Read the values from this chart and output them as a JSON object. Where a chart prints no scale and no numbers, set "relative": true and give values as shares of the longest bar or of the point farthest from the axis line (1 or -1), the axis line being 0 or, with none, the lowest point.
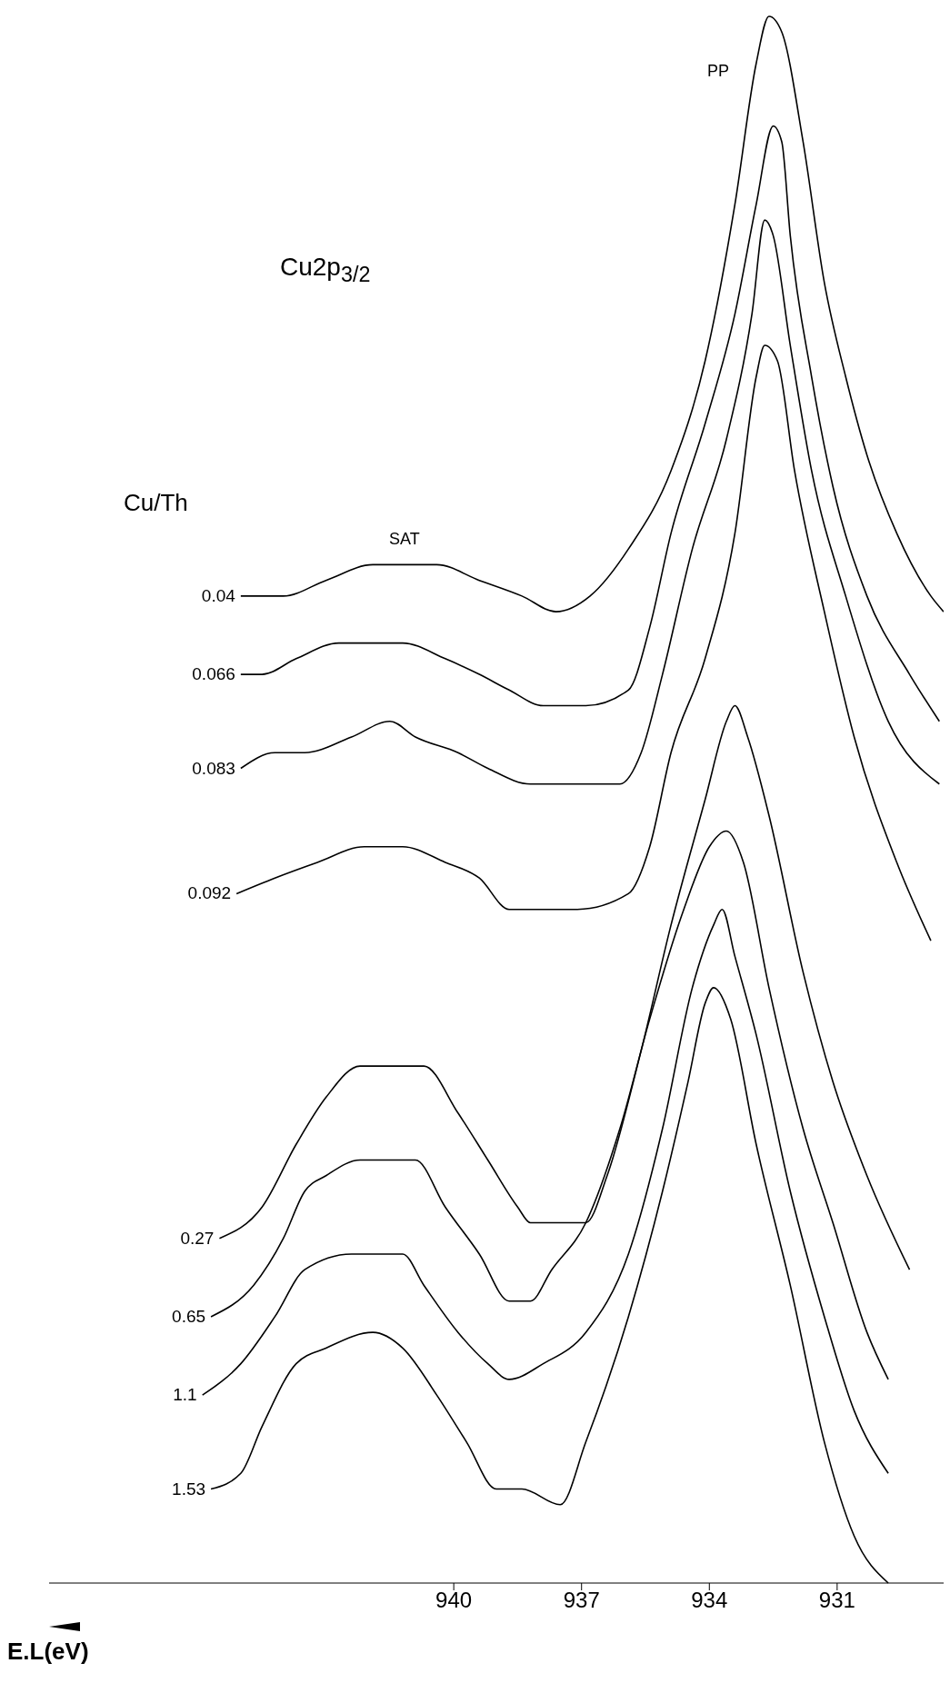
{
  "chart_data": {
    "type": "line",
    "title": "Cu2p$_{3/2}$",
    "xlabel": "E.L(eV)",
    "legend_title": "Cu/Th",
    "relative": true,
    "xlim": [
      949.5,
      928.5
    ],
    "xticks": [
      940,
      937,
      934,
      931
    ],
    "tick_labels": "x",
    "grid": false,
    "marker": "none",
    "line_style": "solid",
    "annotations": [
      "SAT",
      "PP"
    ],
    "series": [
      {
        "name": "0.04",
        "color": "#000000",
        "x": [
          945.0,
          944.0,
          943.0,
          941.9,
          941.3,
          940.4,
          939.4,
          938.4,
          937.6,
          936.8,
          935.9,
          934.9,
          934.1,
          933.4,
          932.9,
          932.6,
          932.3,
          931.8,
          931.3,
          930.8,
          930.3,
          929.6,
          928.8,
          928.5
        ],
        "values": [
          0.63,
          0.63,
          0.64,
          0.65,
          0.65,
          0.65,
          0.64,
          0.63,
          0.62,
          0.63,
          0.66,
          0.71,
          0.78,
          0.88,
          0.97,
          1.0,
          0.99,
          0.92,
          0.83,
          0.77,
          0.72,
          0.67,
          0.63,
          0.62
        ]
      },
      {
        "name": "0.066",
        "color": "#000000",
        "x": [
          945.0,
          944.5,
          943.7,
          942.7,
          941.8,
          941.2,
          940.2,
          939.4,
          938.7,
          937.9,
          936.9,
          935.9,
          935.4,
          934.9,
          934.1,
          933.4,
          932.9,
          932.5,
          932.3,
          932.1,
          931.6,
          931.1,
          930.3,
          929.3,
          928.6
        ],
        "values": [
          0.58,
          0.58,
          0.59,
          0.6,
          0.6,
          0.6,
          0.59,
          0.58,
          0.57,
          0.56,
          0.56,
          0.57,
          0.61,
          0.67,
          0.74,
          0.81,
          0.88,
          0.93,
          0.92,
          0.86,
          0.77,
          0.7,
          0.63,
          0.58,
          0.55
        ]
      },
      {
        "name": "0.083",
        "color": "#000000",
        "x": [
          945.0,
          944.2,
          943.5,
          942.4,
          941.5,
          940.9,
          939.9,
          939.2,
          938.2,
          937.1,
          936.1,
          935.6,
          935.1,
          934.4,
          933.6,
          933.0,
          932.7,
          932.5,
          932.1,
          931.6,
          930.8,
          929.8,
          928.6
        ],
        "values": [
          0.52,
          0.53,
          0.53,
          0.54,
          0.55,
          0.54,
          0.53,
          0.52,
          0.51,
          0.51,
          0.51,
          0.53,
          0.58,
          0.66,
          0.73,
          0.81,
          0.87,
          0.86,
          0.79,
          0.71,
          0.63,
          0.55,
          0.51
        ]
      },
      {
        "name": "0.092",
        "color": "#000000",
        "x": [
          945.1,
          944.2,
          943.2,
          942.1,
          941.2,
          940.2,
          939.4,
          938.7,
          937.9,
          937.1,
          935.9,
          935.4,
          934.9,
          934.1,
          933.4,
          932.9,
          932.7,
          932.4,
          932.0,
          931.3,
          930.6,
          929.6,
          928.8
        ],
        "values": [
          0.44,
          0.45,
          0.46,
          0.47,
          0.47,
          0.46,
          0.45,
          0.43,
          0.43,
          0.43,
          0.44,
          0.47,
          0.53,
          0.59,
          0.67,
          0.77,
          0.79,
          0.78,
          0.71,
          0.62,
          0.54,
          0.46,
          0.41
        ]
      },
      {
        "name": "0.27",
        "color": "#000000",
        "x": [
          945.5,
          944.5,
          943.7,
          943.0,
          942.2,
          941.4,
          940.7,
          939.9,
          939.2,
          938.5,
          938.2,
          937.7,
          936.9,
          936.4,
          935.6,
          934.9,
          934.1,
          933.6,
          933.4,
          933.1,
          932.6,
          931.8,
          931.1,
          930.3,
          929.3
        ],
        "values": [
          0.22,
          0.24,
          0.28,
          0.31,
          0.33,
          0.33,
          0.33,
          0.3,
          0.27,
          0.24,
          0.23,
          0.23,
          0.23,
          0.26,
          0.34,
          0.42,
          0.5,
          0.55,
          0.56,
          0.54,
          0.49,
          0.39,
          0.32,
          0.26,
          0.2
        ]
      },
      {
        "name": "0.65",
        "color": "#000000",
        "x": [
          945.7,
          944.7,
          944.0,
          943.5,
          943.0,
          942.2,
          940.9,
          940.2,
          939.4,
          938.7,
          938.2,
          937.7,
          936.9,
          936.1,
          935.4,
          934.6,
          934.0,
          933.6,
          933.2,
          932.6,
          931.8,
          931.1,
          930.3,
          929.8
        ],
        "values": [
          0.17,
          0.19,
          0.22,
          0.25,
          0.26,
          0.27,
          0.27,
          0.24,
          0.21,
          0.18,
          0.18,
          0.2,
          0.23,
          0.29,
          0.36,
          0.43,
          0.47,
          0.48,
          0.46,
          0.38,
          0.29,
          0.23,
          0.16,
          0.13
        ]
      },
      {
        "name": "1.1",
        "color": "#000000",
        "x": [
          945.9,
          945.0,
          944.2,
          943.5,
          942.4,
          941.2,
          940.7,
          939.9,
          939.2,
          938.7,
          937.9,
          936.9,
          935.9,
          935.1,
          934.4,
          933.9,
          933.7,
          933.4,
          932.9,
          932.1,
          931.3,
          930.6,
          929.8
        ],
        "values": [
          0.12,
          0.14,
          0.17,
          0.2,
          0.21,
          0.21,
          0.19,
          0.16,
          0.14,
          0.13,
          0.14,
          0.16,
          0.21,
          0.29,
          0.38,
          0.42,
          0.43,
          0.4,
          0.35,
          0.25,
          0.17,
          0.11,
          0.07
        ]
      },
      {
        "name": "1.53",
        "color": "#000000",
        "x": [
          945.7,
          945.0,
          944.5,
          943.7,
          943.0,
          941.9,
          941.2,
          940.4,
          939.7,
          939.0,
          938.4,
          937.5,
          936.9,
          935.9,
          935.1,
          934.5,
          934.1,
          933.9,
          933.5,
          932.9,
          932.1,
          931.3,
          930.6,
          929.8
        ],
        "values": [
          0.06,
          0.07,
          0.1,
          0.14,
          0.15,
          0.16,
          0.15,
          0.12,
          0.09,
          0.06,
          0.06,
          0.05,
          0.09,
          0.17,
          0.25,
          0.32,
          0.37,
          0.38,
          0.36,
          0.28,
          0.19,
          0.09,
          0.03,
          0.0
        ]
      }
    ]
  }
}
